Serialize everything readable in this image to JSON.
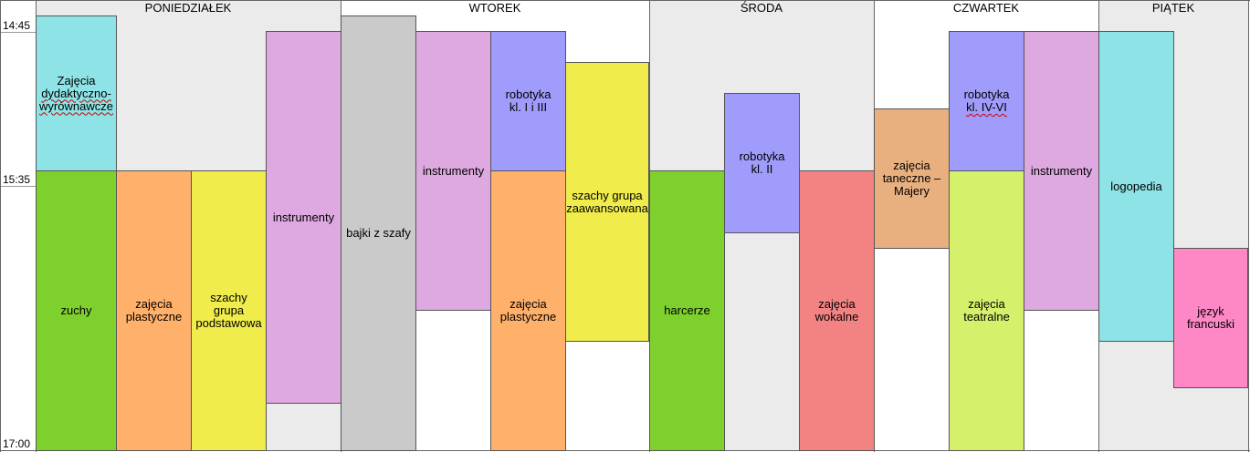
{
  "days": [
    "PONIEDZIAŁEK",
    "WTOREK",
    "ŚRODA",
    "CZWARTEK",
    "PIĄTEK"
  ],
  "times": [
    "14:45",
    "15:35",
    "17:00"
  ],
  "activities": {
    "zajecia_dydaktyczno": [
      "Zajęcia",
      "dydaktyczno-",
      "wyrównawcze"
    ],
    "zuchy": [
      "zuchy"
    ],
    "plastyczne_mon": [
      "zajęcia",
      "plastyczne"
    ],
    "szachy_podst": [
      "szachy grupa",
      "podstawowa"
    ],
    "instrumenty_mon": [
      "instrumenty"
    ],
    "bajki": [
      "bajki z szafy"
    ],
    "instrumenty_tue": [
      "instrumenty"
    ],
    "robotyka_1_3": [
      "robotyka",
      "kl. I i III"
    ],
    "plastyczne_tue": [
      "zajęcia",
      "plastyczne"
    ],
    "szachy_zaaw": [
      "szachy grupa",
      "zaawansowana"
    ],
    "harcerze": [
      "harcerze"
    ],
    "robotyka_2": [
      "robotyka",
      "kl. II"
    ],
    "wokalne": [
      "zajęcia",
      "wokalne"
    ],
    "taneczne": [
      "zajęcia",
      "taneczne –",
      "Majery"
    ],
    "robotyka_4_6": [
      "robotyka",
      "kl. IV-VI"
    ],
    "teatralne": [
      "zajęcia",
      "teatralne"
    ],
    "instrumenty_thu": [
      "instrumenty"
    ],
    "logopedia": [
      "logopedia"
    ],
    "francuski": [
      "język",
      "francuski"
    ]
  },
  "colors": {
    "cyan": "#8de3e5",
    "green": "#7ed12c",
    "orange": "#ffb06a",
    "yellow": "#efec4b",
    "pink": "#dea8e0",
    "gray": "#cacaca",
    "purple": "#a09cfb",
    "red": "#f38383",
    "tan": "#e8b07e",
    "lightgreen": "#d5f06b",
    "magenta": "#fe87c5",
    "background_shade": "#ebebeb"
  }
}
